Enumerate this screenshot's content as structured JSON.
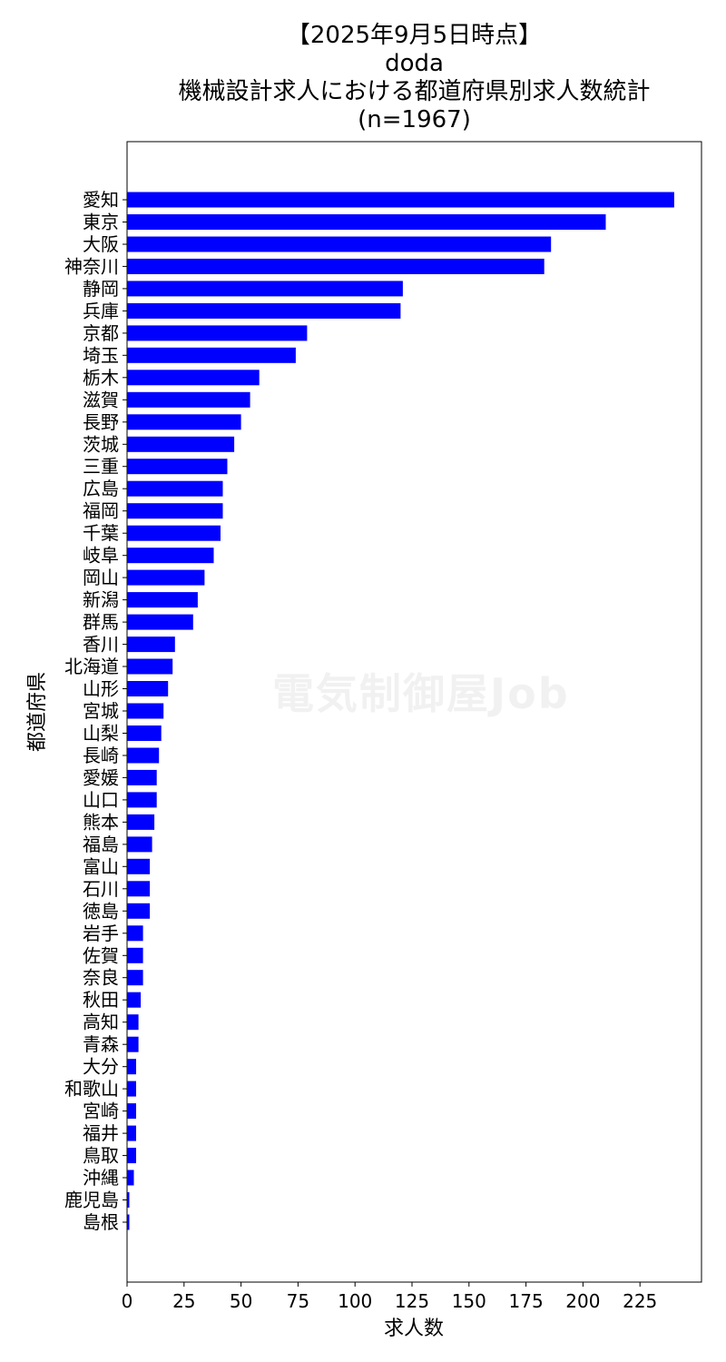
{
  "chart_data": {
    "type": "bar",
    "orientation": "horizontal",
    "title_lines": [
      "【2025年9月5日時点】",
      "doda",
      "機械設計求人における都道府県別求人数統計",
      "(n=1967)"
    ],
    "xlabel": "求人数",
    "ylabel": "都道府県",
    "xlim": [
      0,
      252
    ],
    "xticks": [
      0,
      25,
      50,
      75,
      100,
      125,
      150,
      175,
      200,
      225
    ],
    "bar_color": "#0000ff",
    "grid": false,
    "categories": [
      "愛知",
      "東京",
      "大阪",
      "神奈川",
      "静岡",
      "兵庫",
      "京都",
      "埼玉",
      "栃木",
      "滋賀",
      "長野",
      "茨城",
      "三重",
      "広島",
      "福岡",
      "千葉",
      "岐阜",
      "岡山",
      "新潟",
      "群馬",
      "香川",
      "北海道",
      "山形",
      "宮城",
      "山梨",
      "長崎",
      "愛媛",
      "山口",
      "熊本",
      "福島",
      "富山",
      "石川",
      "徳島",
      "岩手",
      "佐賀",
      "奈良",
      "秋田",
      "高知",
      "青森",
      "大分",
      "和歌山",
      "宮崎",
      "福井",
      "鳥取",
      "沖縄",
      "鹿児島",
      "島根"
    ],
    "values": [
      240,
      210,
      186,
      183,
      121,
      120,
      79,
      74,
      58,
      54,
      50,
      47,
      44,
      42,
      42,
      41,
      38,
      34,
      31,
      29,
      21,
      20,
      18,
      16,
      15,
      14,
      13,
      13,
      12,
      11,
      10,
      10,
      10,
      7,
      7,
      7,
      6,
      5,
      5,
      4,
      4,
      4,
      4,
      4,
      3,
      1,
      1
    ]
  },
  "watermark_text": "電気制御屋Job"
}
